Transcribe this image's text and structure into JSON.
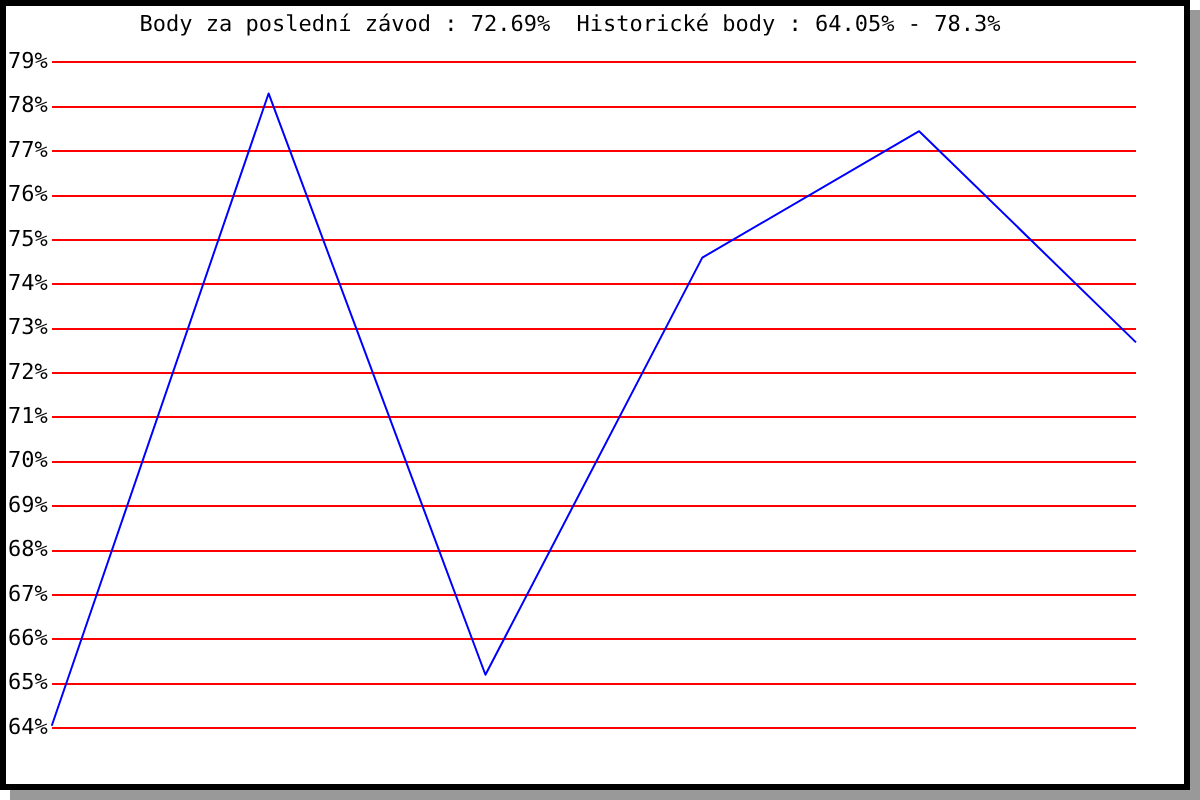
{
  "chart_data": {
    "type": "line",
    "title": "Body za poslední závod : 72.69%  Historické body : 64.05% - 78.3%",
    "categories": [
      null,
      null,
      null,
      null,
      null,
      null
    ],
    "values": [
      64.05,
      78.3,
      65.2,
      74.6,
      77.45,
      72.69
    ],
    "color": "#0000ff",
    "ylim": [
      64,
      79
    ],
    "yticks": [
      {
        "value": 64,
        "label": "64%"
      },
      {
        "value": 65,
        "label": "65%"
      },
      {
        "value": 66,
        "label": "66%"
      },
      {
        "value": 67,
        "label": "67%"
      },
      {
        "value": 68,
        "label": "68%"
      },
      {
        "value": 69,
        "label": "69%"
      },
      {
        "value": 70,
        "label": "70%"
      },
      {
        "value": 71,
        "label": "71%"
      },
      {
        "value": 72,
        "label": "72%"
      },
      {
        "value": 73,
        "label": "73%"
      },
      {
        "value": 74,
        "label": "74%"
      },
      {
        "value": 75,
        "label": "75%"
      },
      {
        "value": 76,
        "label": "76%"
      },
      {
        "value": 77,
        "label": "77%"
      },
      {
        "value": 78,
        "label": "78%"
      },
      {
        "value": 79,
        "label": "79%"
      }
    ],
    "grid": "y",
    "legend": false,
    "marker": "none",
    "line_style": "solid",
    "tick_labels": "y"
  }
}
